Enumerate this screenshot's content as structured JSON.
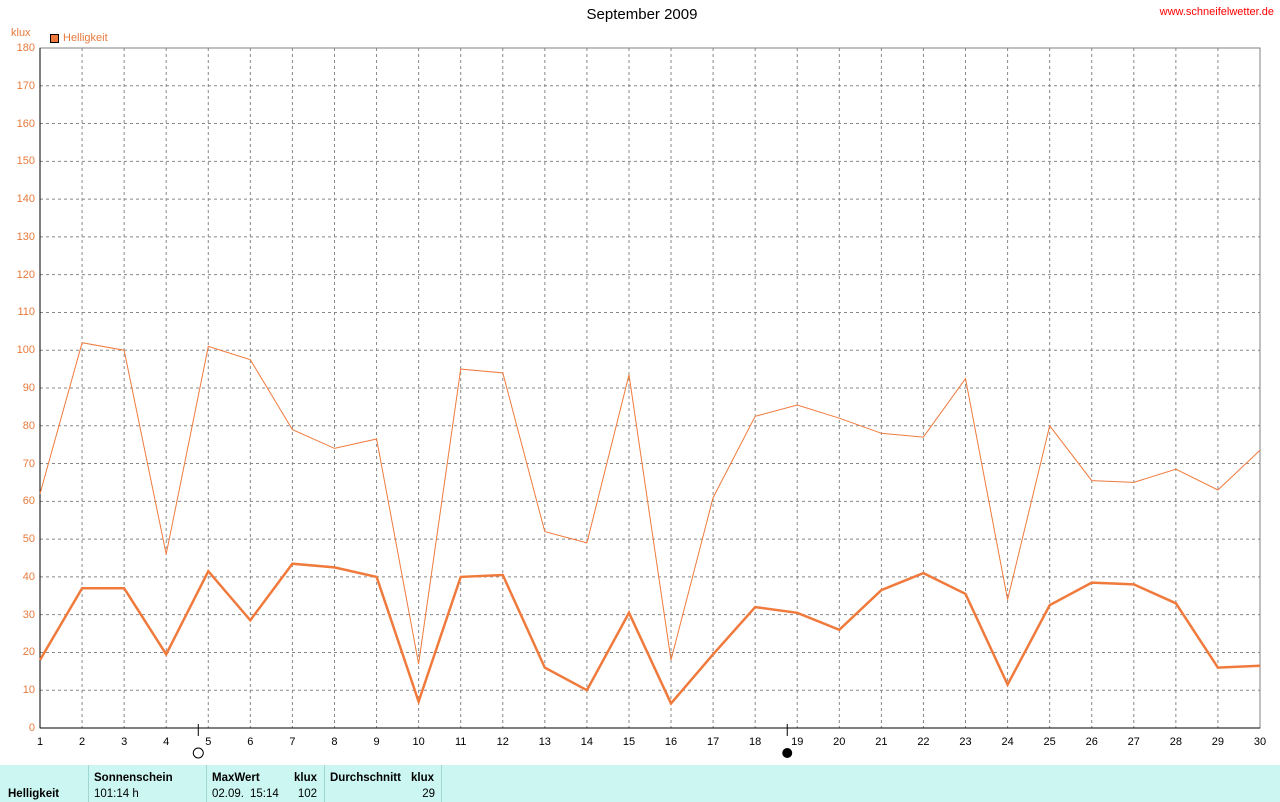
{
  "title": "September 2009",
  "source": "www.schneifelwetter.de",
  "unit": "klux",
  "legend": {
    "label": "Helligkeit",
    "color": "#f07a3c"
  },
  "colors": {
    "line": "#f07a3c",
    "axis_text": "#e87a3c",
    "grid": "#888888",
    "stats_bg": "#ccf6f2"
  },
  "moon_phases": [
    {
      "day": 5,
      "phase": "full",
      "icon": "full-moon-icon"
    },
    {
      "day": 19,
      "phase": "new",
      "icon": "new-moon-icon"
    }
  ],
  "chart_data": {
    "type": "line",
    "title": "September 2009",
    "xlabel": "",
    "ylabel": "klux",
    "x": [
      1,
      2,
      3,
      4,
      5,
      6,
      7,
      8,
      9,
      10,
      11,
      12,
      13,
      14,
      15,
      16,
      17,
      18,
      19,
      20,
      21,
      22,
      23,
      24,
      25,
      26,
      27,
      28,
      29,
      30
    ],
    "xlim": [
      1,
      30
    ],
    "ylim": [
      0,
      180
    ],
    "yticks": [
      0,
      10,
      20,
      30,
      40,
      50,
      60,
      70,
      80,
      90,
      100,
      110,
      120,
      130,
      140,
      150,
      160,
      170,
      180
    ],
    "grid": true,
    "legend_position": "top-left",
    "series": [
      {
        "name": "",
        "style": "thin",
        "values": [
          62,
          102,
          100,
          46,
          101,
          97.5,
          79,
          74,
          76.5,
          17,
          95,
          94,
          52,
          49,
          93.5,
          18,
          61,
          82.5,
          85.5,
          82,
          78,
          77,
          92.5,
          34,
          80,
          65.5,
          65,
          68.5,
          63,
          73.5
        ]
      },
      {
        "name": "Helligkeit",
        "style": "thick",
        "values": [
          18,
          37,
          37,
          19.5,
          41.5,
          28.5,
          43.5,
          42.5,
          40,
          7,
          40,
          40.5,
          16,
          10,
          30.5,
          6.5,
          19.5,
          32,
          30.5,
          26,
          36.5,
          41,
          35.5,
          11.5,
          32.5,
          38.5,
          38,
          33,
          16,
          16.5
        ]
      }
    ]
  },
  "stats": {
    "row_label": "Helligkeit",
    "sun_header": "Sonnenschein",
    "sun_value": "101:14 h",
    "max_header": "MaxWert",
    "max_unit": "klux",
    "max_date": "02.09.",
    "max_time": "15:14",
    "max_value": "102",
    "avg_header": "Durchschnitt",
    "avg_unit": "klux",
    "avg_value": "29"
  }
}
